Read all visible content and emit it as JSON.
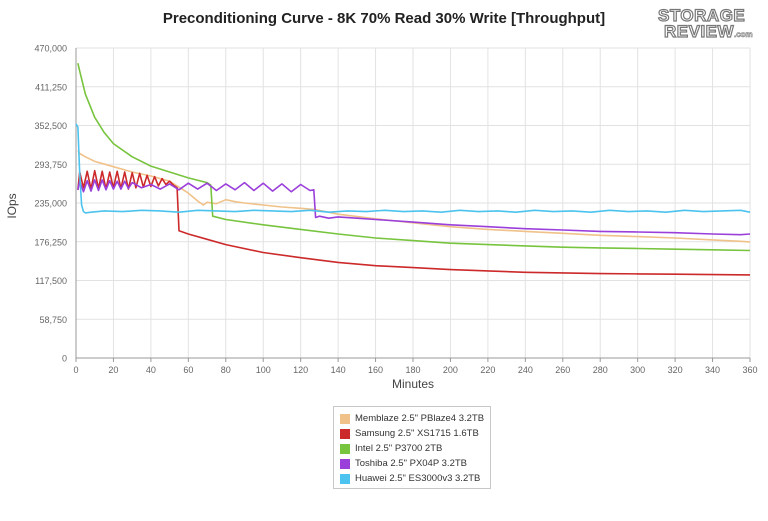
{
  "chart_data": {
    "type": "line",
    "title": "Preconditioning Curve - 8K 70% Read 30% Write [Throughput]",
    "xlabel": "Minutes",
    "ylabel": "IOps",
    "xlim": [
      0,
      360
    ],
    "ylim": [
      0,
      470000
    ],
    "x_ticks": [
      0,
      20,
      40,
      60,
      80,
      100,
      120,
      140,
      160,
      180,
      200,
      220,
      240,
      260,
      280,
      300,
      320,
      340,
      360
    ],
    "y_ticks": [
      0,
      58750,
      117500,
      176250,
      235000,
      293750,
      352500,
      411250,
      470000
    ],
    "y_tick_labels": [
      "0",
      "58,750",
      "117,500",
      "176,250",
      "235,000",
      "293,750",
      "352,500",
      "411,250",
      "470,000"
    ],
    "grid": true,
    "legend_position": "bottom-center",
    "series": [
      {
        "name": "Memblaze 2.5\" PBlaze4 3.2TB",
        "color": "#f0c28a",
        "x": [
          1,
          2,
          5,
          10,
          20,
          30,
          40,
          50,
          60,
          65,
          68,
          70,
          75,
          80,
          85,
          90,
          100,
          110,
          120,
          128,
          140,
          160,
          180,
          200,
          220,
          240,
          260,
          280,
          300,
          320,
          340,
          355,
          360
        ],
        "y": [
          315000,
          310000,
          305000,
          298000,
          290000,
          282000,
          276000,
          268000,
          250000,
          238000,
          232000,
          236000,
          234000,
          240000,
          237000,
          235000,
          232000,
          229000,
          227000,
          225000,
          218000,
          211000,
          205000,
          199000,
          195000,
          192000,
          189000,
          186000,
          184000,
          182000,
          179000,
          177000,
          176000
        ]
      },
      {
        "name": "Samsung 2.5\" XS1715 1.6TB",
        "color": "#cc2a2a",
        "x": [
          1,
          2,
          4,
          6,
          8,
          10,
          12,
          14,
          16,
          18,
          20,
          22,
          24,
          26,
          28,
          30,
          32,
          34,
          36,
          38,
          40,
          42,
          44,
          46,
          48,
          50,
          52,
          54,
          55,
          60,
          70,
          80,
          100,
          120,
          140,
          160,
          180,
          200,
          220,
          240,
          260,
          280,
          300,
          320,
          340,
          360
        ],
        "y": [
          255000,
          282000,
          258000,
          283000,
          256000,
          284000,
          257000,
          283000,
          256000,
          282000,
          258000,
          283000,
          257000,
          282000,
          256000,
          281000,
          258000,
          280000,
          259000,
          277000,
          260000,
          275000,
          261000,
          272000,
          263000,
          268000,
          262000,
          258000,
          193000,
          188000,
          180000,
          172000,
          160000,
          152000,
          145000,
          140000,
          137000,
          134000,
          132000,
          130000,
          129000,
          128000,
          127500,
          127000,
          126500,
          126000
        ]
      },
      {
        "name": "Intel 2.5\" P3700 2TB",
        "color": "#77c43e",
        "x": [
          1,
          2,
          5,
          10,
          15,
          20,
          30,
          40,
          50,
          60,
          70,
          72,
          73,
          80,
          100,
          120,
          140,
          160,
          180,
          200,
          220,
          240,
          260,
          280,
          300,
          320,
          340,
          360
        ],
        "y": [
          447000,
          435000,
          400000,
          365000,
          342000,
          325000,
          305000,
          291000,
          282000,
          273000,
          266000,
          262000,
          215000,
          210000,
          202000,
          195000,
          188000,
          182000,
          178000,
          174000,
          172000,
          170000,
          168000,
          167000,
          166000,
          165000,
          164000,
          163000
        ]
      },
      {
        "name": "Toshiba 2.5\" PX04P 3.2TB",
        "color": "#9b3fdb",
        "x": [
          1,
          2,
          4,
          6,
          8,
          10,
          12,
          14,
          16,
          18,
          20,
          22,
          24,
          26,
          28,
          30,
          35,
          40,
          45,
          50,
          55,
          60,
          65,
          70,
          75,
          80,
          85,
          90,
          95,
          100,
          105,
          110,
          115,
          120,
          125,
          127,
          128,
          130,
          135,
          140,
          150,
          160,
          180,
          200,
          220,
          240,
          260,
          280,
          300,
          320,
          340,
          355,
          360
        ],
        "y": [
          255000,
          268000,
          252000,
          269000,
          253000,
          270000,
          254000,
          270000,
          255000,
          269000,
          256000,
          268000,
          256000,
          268000,
          257000,
          266000,
          258000,
          263000,
          256000,
          264000,
          255000,
          265000,
          256000,
          265000,
          254000,
          264000,
          255000,
          266000,
          254000,
          265000,
          253000,
          264000,
          252000,
          263000,
          254000,
          255000,
          213000,
          215000,
          212000,
          214000,
          212000,
          210000,
          206000,
          202000,
          199000,
          196000,
          194000,
          192000,
          191000,
          190000,
          188000,
          187000,
          188000
        ]
      },
      {
        "name": "Huawei 2.5\" ES3000v3 3.2TB",
        "color": "#4cc3ee",
        "x": [
          0,
          1,
          2,
          3,
          4,
          5,
          8,
          15,
          25,
          35,
          45,
          55,
          65,
          75,
          85,
          95,
          105,
          115,
          125,
          135,
          145,
          155,
          165,
          175,
          185,
          195,
          205,
          215,
          225,
          235,
          245,
          255,
          265,
          275,
          285,
          295,
          305,
          315,
          325,
          335,
          345,
          355,
          360
        ],
        "y": [
          355000,
          350000,
          280000,
          232000,
          222000,
          220000,
          221000,
          223000,
          222000,
          224000,
          223000,
          221000,
          224000,
          223000,
          222000,
          224000,
          223000,
          222000,
          224000,
          221000,
          223000,
          222000,
          224000,
          222000,
          223000,
          221000,
          224000,
          222000,
          223000,
          221000,
          224000,
          222000,
          223000,
          221000,
          224000,
          222000,
          223000,
          221000,
          224000,
          222000,
          223000,
          224000,
          221000
        ]
      }
    ]
  },
  "logo": {
    "line1": "STORAGE",
    "line2": "REVIEW",
    "suffix": ".com"
  }
}
